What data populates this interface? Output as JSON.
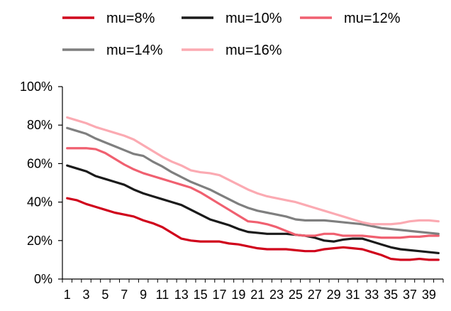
{
  "chart_data": {
    "type": "line",
    "title": "",
    "xlabel": "",
    "ylabel": "",
    "x": [
      1,
      2,
      3,
      4,
      5,
      6,
      7,
      8,
      9,
      10,
      11,
      12,
      13,
      14,
      15,
      16,
      17,
      18,
      19,
      20,
      21,
      22,
      23,
      24,
      25,
      26,
      27,
      28,
      29,
      30,
      31,
      32,
      33,
      34,
      35,
      36,
      37,
      38,
      39,
      40
    ],
    "x_tick_labels": [
      "1",
      "3",
      "5",
      "7",
      "9",
      "11",
      "13",
      "15",
      "17",
      "19",
      "21",
      "23",
      "25",
      "27",
      "29",
      "31",
      "33",
      "35",
      "37",
      "39"
    ],
    "y_tick_labels": [
      "0%",
      "20%",
      "40%",
      "60%",
      "80%",
      "100%"
    ],
    "ylim": [
      0,
      100
    ],
    "grid": false,
    "legend_position": "top",
    "series": [
      {
        "name": "mu=8%",
        "color": "#d0021b",
        "values": [
          42,
          41,
          39,
          37.5,
          36,
          34.5,
          33.5,
          32.5,
          30.5,
          29,
          27,
          24,
          21,
          20,
          19.5,
          19.5,
          19.5,
          18.5,
          18,
          17,
          16,
          15.5,
          15.5,
          15.5,
          15,
          14.5,
          14.5,
          15.5,
          16,
          16.5,
          16,
          15.5,
          14,
          12.5,
          10.5,
          10,
          10,
          10.5,
          10,
          10
        ]
      },
      {
        "name": "mu=10%",
        "color": "#1a1a1a",
        "values": [
          59,
          57.5,
          56,
          53.5,
          52,
          50.5,
          49,
          46.5,
          44.5,
          43,
          41.5,
          40,
          38.5,
          36,
          33.5,
          31,
          29.5,
          28,
          26,
          24.5,
          24,
          23.5,
          23.5,
          23.5,
          23,
          22.5,
          21.5,
          20,
          19.5,
          20.5,
          21,
          21,
          19.5,
          18,
          16.5,
          15.5,
          15,
          14.5,
          14,
          13.5
        ]
      },
      {
        "name": "mu=12%",
        "color": "#f06070",
        "values": [
          68,
          68,
          68,
          67.5,
          65.5,
          62.5,
          59.5,
          57,
          55,
          53.5,
          52,
          50.5,
          49,
          47.5,
          45,
          42,
          39,
          36,
          33,
          30,
          29.5,
          28.5,
          27,
          25,
          23,
          22.5,
          22.5,
          23.5,
          23.5,
          22.5,
          22.5,
          22.5,
          22,
          21.5,
          21.5,
          21.5,
          22,
          22,
          22.5,
          22.5
        ]
      },
      {
        "name": "mu=14%",
        "color": "#7f7f7f",
        "values": [
          78.5,
          77,
          75.5,
          73,
          71,
          69,
          67,
          65,
          64,
          61,
          58.5,
          55.5,
          53,
          50.5,
          48.5,
          46.5,
          44,
          41.5,
          39,
          37,
          35.5,
          34.5,
          33.5,
          32.5,
          31,
          30.5,
          30.5,
          30.5,
          30,
          29.5,
          29,
          28.5,
          27.5,
          26.5,
          26,
          25.5,
          25,
          24.5,
          24,
          23.5
        ]
      },
      {
        "name": "mu=16%",
        "color": "#fbaab2",
        "values": [
          84,
          82.5,
          81,
          79,
          77.5,
          76,
          74.5,
          72.5,
          69.5,
          66.5,
          63.5,
          61,
          59,
          56.5,
          55.5,
          55,
          54,
          51.5,
          49,
          46.5,
          44.5,
          43,
          42,
          41,
          40,
          38.5,
          37,
          35.5,
          34,
          32.5,
          31,
          29.5,
          28.5,
          28.5,
          28.5,
          29,
          30,
          30.5,
          30.5,
          30
        ]
      }
    ]
  }
}
